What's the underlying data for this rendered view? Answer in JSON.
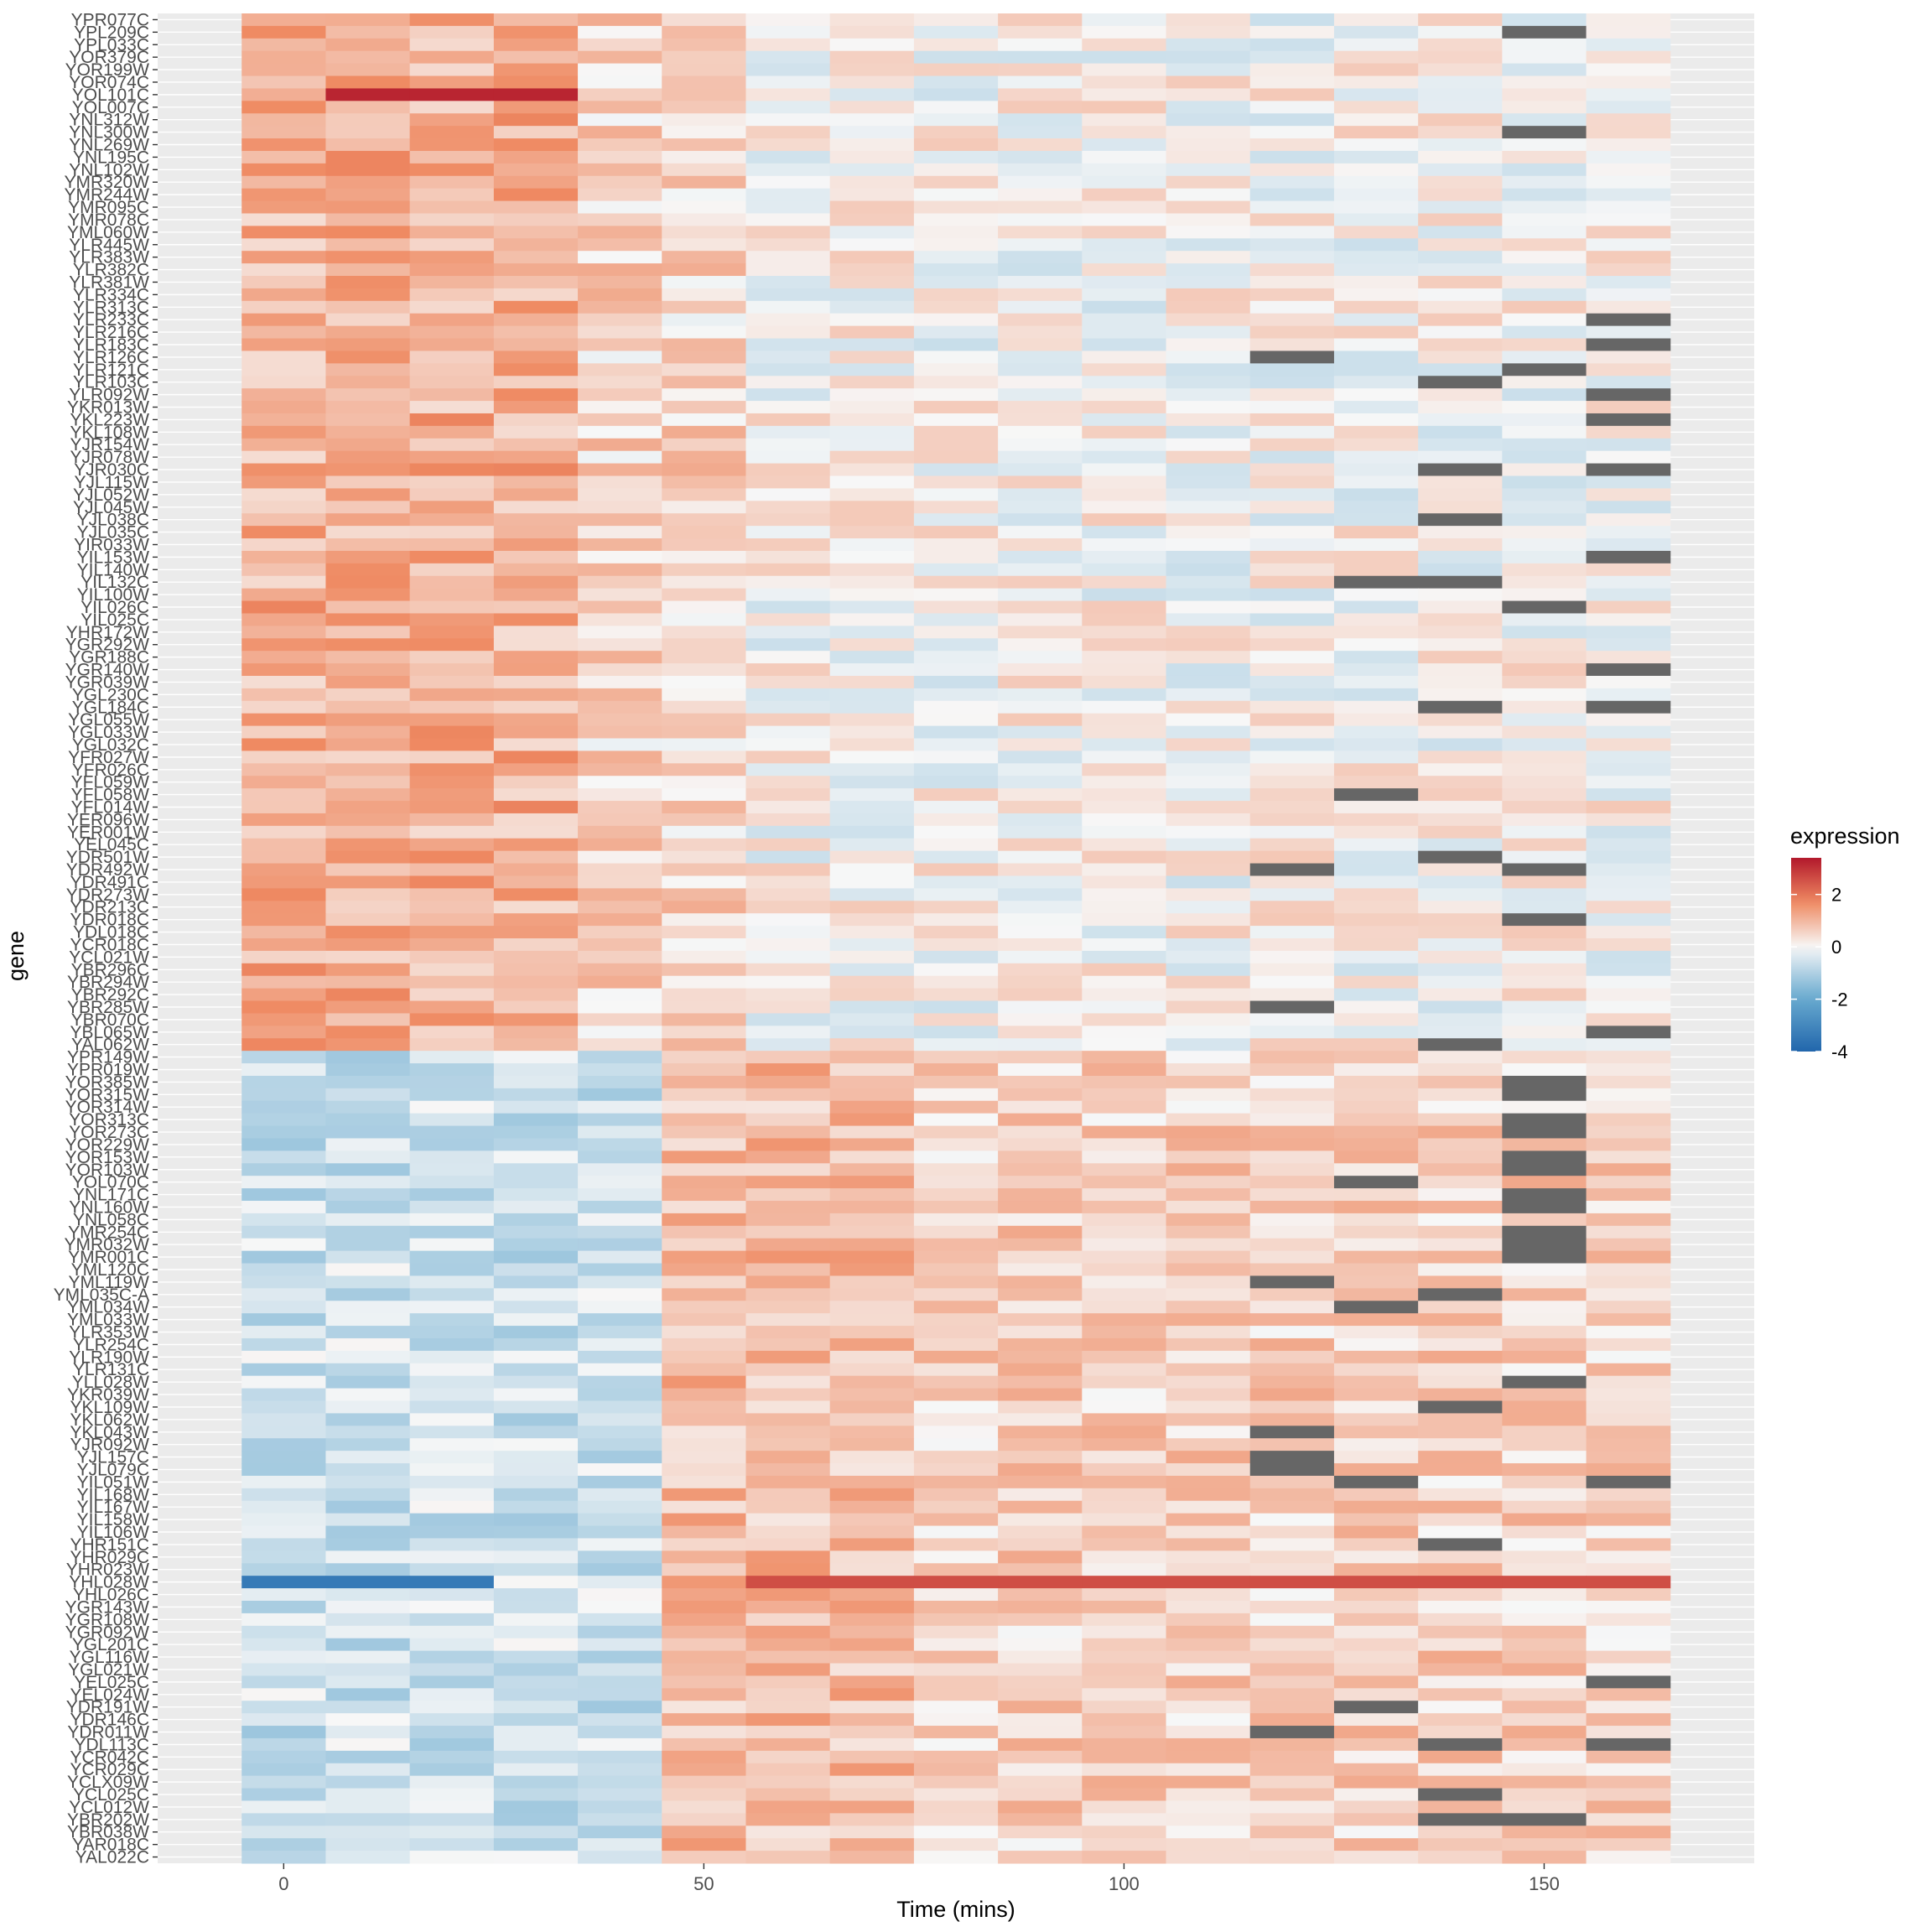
{
  "chart_data": {
    "type": "heatmap",
    "title": "",
    "xlabel": "Time (mins)",
    "ylabel": "gene",
    "x_ticks": [
      0,
      50,
      100,
      150
    ],
    "x_values": [
      0,
      10,
      20,
      30,
      40,
      50,
      60,
      70,
      80,
      90,
      100,
      110,
      120,
      130,
      140,
      150,
      160
    ],
    "xlim": [
      -15,
      175
    ],
    "genes": [
      "YPR077C",
      "YPL209C",
      "YPL033C",
      "YOR379C",
      "YOR199W",
      "YOR074C",
      "YOL101C",
      "YOL007C",
      "YNL312W",
      "YNL300W",
      "YNL269W",
      "YNL195C",
      "YNL102W",
      "YMR320W",
      "YMR244W",
      "YMR095C",
      "YMR078C",
      "YML060W",
      "YLR445W",
      "YLR383W",
      "YLR382C",
      "YLR381W",
      "YLR334C",
      "YLR313C",
      "YLR233C",
      "YLR216C",
      "YLR183C",
      "YLR126C",
      "YLR121C",
      "YLR103C",
      "YLR092W",
      "YKR013W",
      "YKL223W",
      "YKL108W",
      "YJR154W",
      "YJR078W",
      "YJR030C",
      "YJL115W",
      "YJL052W",
      "YJL045W",
      "YJL038C",
      "YJL035C",
      "YIR033W",
      "YIL153W",
      "YIL140W",
      "YIL132C",
      "YIL100W",
      "YIL026C",
      "YIL025C",
      "YHR172W",
      "YGR292W",
      "YGR188C",
      "YGR140W",
      "YGR039W",
      "YGL230C",
      "YGL184C",
      "YGL055W",
      "YGL033W",
      "YGL032C",
      "YFR027W",
      "YFR026C",
      "YFL059W",
      "YFL058W",
      "YFL014W",
      "YER096W",
      "YER001W",
      "YEL045C",
      "YDR501W",
      "YDR492W",
      "YDR491C",
      "YDR273W",
      "YDR213C",
      "YDR018C",
      "YDL018C",
      "YCR018C",
      "YCL021W",
      "YBR296C",
      "YBR294W",
      "YBR292C",
      "YBR285W",
      "YBR070C",
      "YBL065W",
      "YAL062W",
      "YPR149W",
      "YPR019W",
      "YOR385W",
      "YOR315W",
      "YOR314W",
      "YOR313C",
      "YOR273C",
      "YOR229W",
      "YOR153W",
      "YOR103W",
      "YOL070C",
      "YNL171C",
      "YNL160W",
      "YNL058C",
      "YMR254C",
      "YMR032W",
      "YMR001C",
      "YML120C",
      "YML119W",
      "YML035C-A",
      "YML034W",
      "YML033W",
      "YLR353W",
      "YLR254C",
      "YLR190W",
      "YLR131C",
      "YLL028W",
      "YKR039W",
      "YKL109W",
      "YKL062W",
      "YKL043W",
      "YJR092W",
      "YJL157C",
      "YJL079C",
      "YIL051W",
      "YIL168W",
      "YIL167W",
      "YIL158W",
      "YIL106W",
      "YHR151C",
      "YHR029C",
      "YHR023W",
      "YHL028W",
      "YHL026C",
      "YGR143W",
      "YGR108W",
      "YGR092W",
      "YGL201C",
      "YGL116W",
      "YGL021W",
      "YEL025C",
      "YEL024W",
      "YDR191W",
      "YDR146C",
      "YDR011W",
      "YDL113C",
      "YCR042C",
      "YCR029C",
      "YCLX09W",
      "YCL025C",
      "YCL012W",
      "YBR202W",
      "YBR038W",
      "YAR018C",
      "YAL022C"
    ],
    "color_scale": {
      "title": "expression",
      "ticks": [
        2,
        0,
        -2,
        -4
      ],
      "domain": [
        -4,
        3.4
      ],
      "low": "#2166ac",
      "mid": "#f7f7f7",
      "high": "#b2182b",
      "na": "#666666"
    },
    "grid": true,
    "legend_position": "right"
  }
}
